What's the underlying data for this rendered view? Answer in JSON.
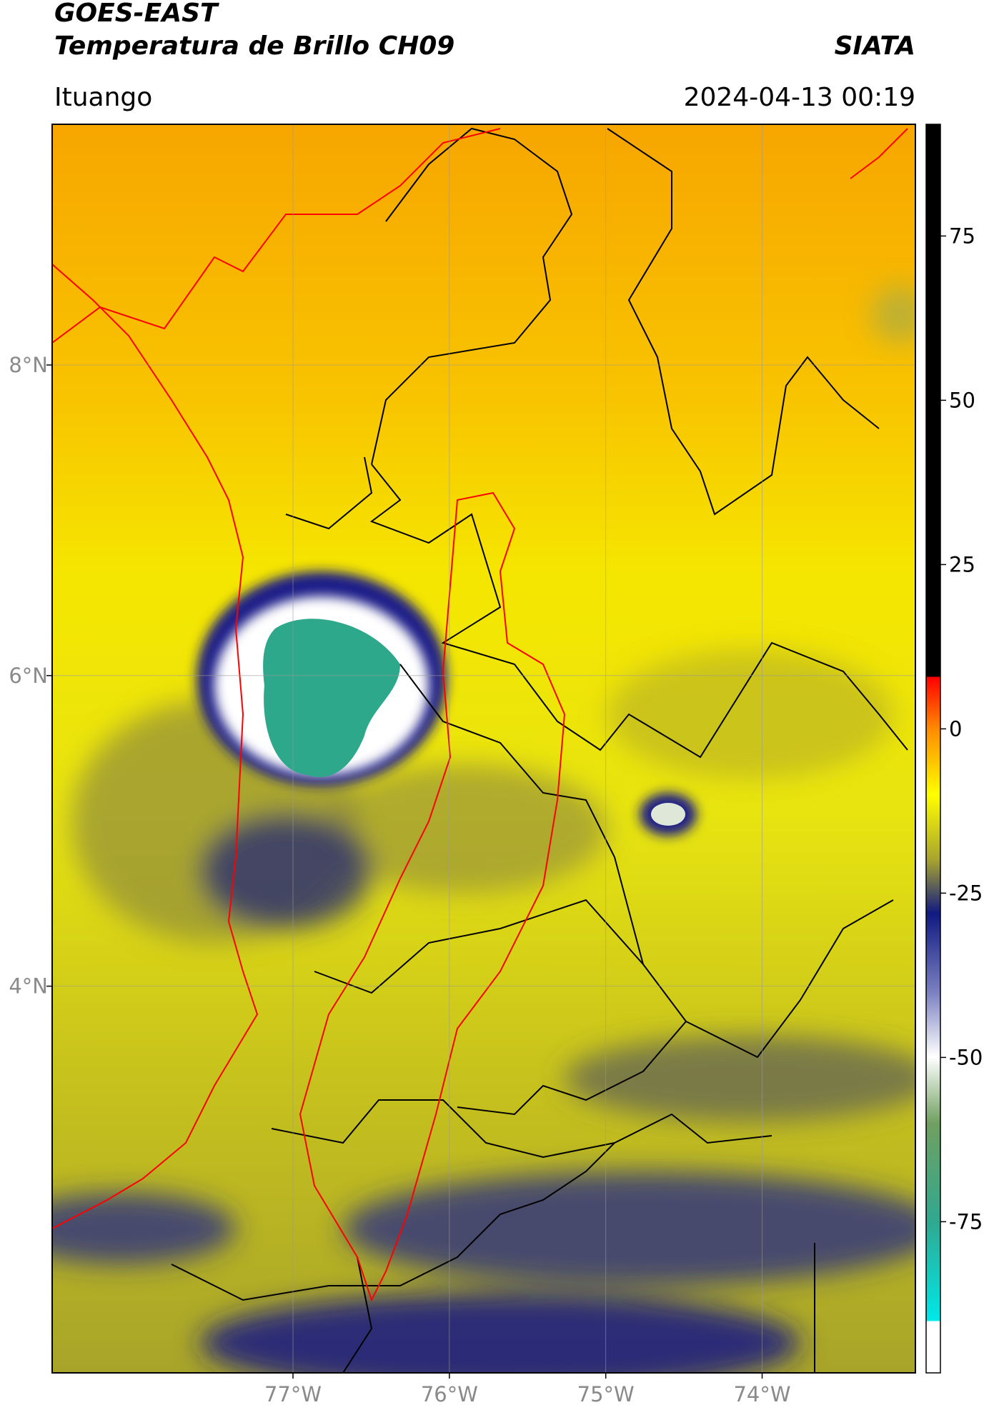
{
  "header": {
    "title": "GOES-EAST",
    "subtitle": "Temperatura de Brillo CH09",
    "source": "SIATA",
    "location": "Ituango",
    "datetime": "2024-04-13 00:19"
  },
  "map": {
    "xlim": [
      -78.54,
      -73.02
    ],
    "ylim": [
      1.51,
      9.55
    ],
    "xticks": [
      {
        "value": -77,
        "label": "77°W"
      },
      {
        "value": -76,
        "label": "76°W"
      },
      {
        "value": -75,
        "label": "75°W"
      },
      {
        "value": -74,
        "label": "74°W"
      }
    ],
    "yticks": [
      {
        "value": 8,
        "label": "8°N"
      },
      {
        "value": 6,
        "label": "6°N"
      },
      {
        "value": 4,
        "label": "4°N"
      }
    ],
    "grid": true
  },
  "colorbar": {
    "lim": [
      -98,
      92
    ],
    "ticks": [
      75,
      50,
      25,
      0,
      -25,
      -50,
      -75
    ]
  }
}
